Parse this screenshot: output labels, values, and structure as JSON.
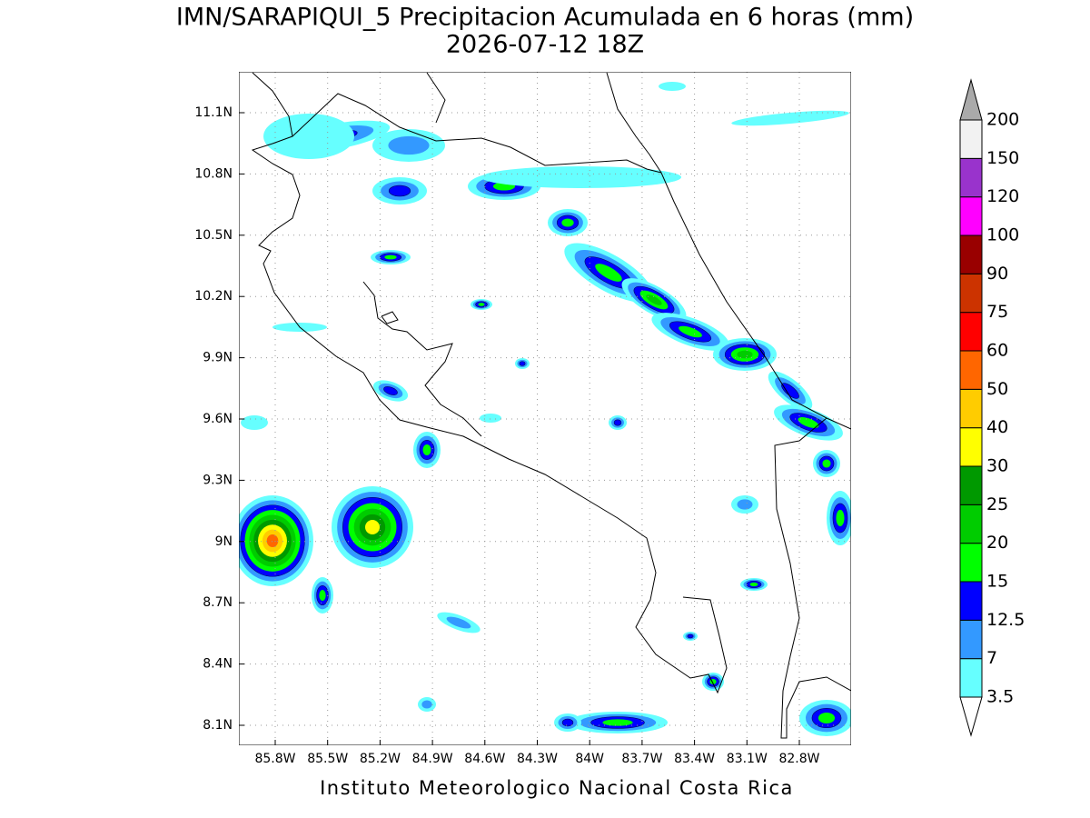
{
  "title": "IMN/SARAPIQUI_5 Precipitacion Acumulada en 6 horas (mm)",
  "subtitle": "2026-07-12 18Z",
  "footer": "Instituto Meteorologico Nacional Costa Rica",
  "lat_labels": [
    "11.1N",
    "10.8N",
    "10.5N",
    "10.2N",
    "9.9N",
    "9.6N",
    "9.3N",
    "9N",
    "8.7N",
    "8.4N",
    "8.1N"
  ],
  "lon_labels": [
    "85.8W",
    "85.5W",
    "85.2W",
    "84.9W",
    "84.6W",
    "84.3W",
    "84W",
    "83.7W",
    "83.4W",
    "83.1W",
    "82.8W"
  ],
  "colorbar": {
    "levels": [
      3.5,
      7,
      12.5,
      15,
      20,
      25,
      30,
      40,
      50,
      60,
      75,
      90,
      100,
      120,
      150,
      200
    ],
    "colors": [
      "#66ffff",
      "#3399ff",
      "#0000ff",
      "#00ff00",
      "#00cc00",
      "#009900",
      "#ffff00",
      "#ffcc00",
      "#ff6600",
      "#ff0000",
      "#cc3300",
      "#990000",
      "#ff00ff",
      "#9933cc",
      "#f2f2f2"
    ],
    "under_color": "#ffffff",
    "over_color": "#aaaaaa"
  }
}
